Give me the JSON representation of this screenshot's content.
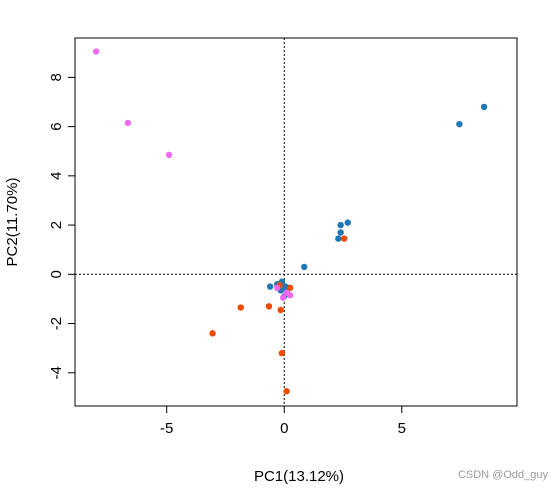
{
  "chart_data": {
    "type": "scatter",
    "title": "",
    "xlabel": "PC1(13.12%)",
    "ylabel": "PC2(11.70%)",
    "xlim": [
      -8.9,
      9.9
    ],
    "ylim": [
      -5.35,
      9.6
    ],
    "x_ticks": [
      -5,
      0,
      5
    ],
    "y_ticks": [
      -4,
      -2,
      0,
      2,
      4,
      6,
      8
    ],
    "reference_lines": {
      "x": 0,
      "y": 0,
      "style": "dotted"
    },
    "grid": false,
    "series": [
      {
        "color": "#1F77B4",
        "points": [
          {
            "x": 8.5,
            "y": 6.8
          },
          {
            "x": 7.45,
            "y": 6.1
          },
          {
            "x": 2.7,
            "y": 2.1
          },
          {
            "x": 2.4,
            "y": 2.0
          },
          {
            "x": 2.4,
            "y": 1.7
          },
          {
            "x": 2.3,
            "y": 1.45
          },
          {
            "x": 0.85,
            "y": 0.3
          },
          {
            "x": -0.6,
            "y": -0.5
          },
          {
            "x": -0.3,
            "y": -0.4
          },
          {
            "x": -0.1,
            "y": -0.3
          },
          {
            "x": 0.05,
            "y": -0.5
          },
          {
            "x": 0.1,
            "y": -0.7
          },
          {
            "x": -0.15,
            "y": -0.65
          },
          {
            "x": 0.0,
            "y": -0.9
          },
          {
            "x": 0.15,
            "y": -0.55
          }
        ]
      },
      {
        "color": "#F04A00",
        "points": [
          {
            "x": 2.55,
            "y": 1.45
          },
          {
            "x": 0.25,
            "y": -0.55
          },
          {
            "x": -0.2,
            "y": -0.45
          },
          {
            "x": -0.65,
            "y": -1.3
          },
          {
            "x": -0.15,
            "y": -1.45
          },
          {
            "x": -1.85,
            "y": -1.35
          },
          {
            "x": -3.05,
            "y": -2.4
          },
          {
            "x": -0.1,
            "y": -3.2
          },
          {
            "x": 0.1,
            "y": -4.75
          }
        ]
      },
      {
        "color": "#EE6AEE",
        "points": [
          {
            "x": -8.0,
            "y": 9.05
          },
          {
            "x": -6.65,
            "y": 6.15
          },
          {
            "x": -4.9,
            "y": 4.85
          },
          {
            "x": 0.25,
            "y": -0.85
          },
          {
            "x": -0.05,
            "y": -0.95
          },
          {
            "x": 0.1,
            "y": -0.75
          },
          {
            "x": -0.3,
            "y": -0.55
          }
        ]
      }
    ]
  },
  "watermark": "CSDN @Odd_guy"
}
